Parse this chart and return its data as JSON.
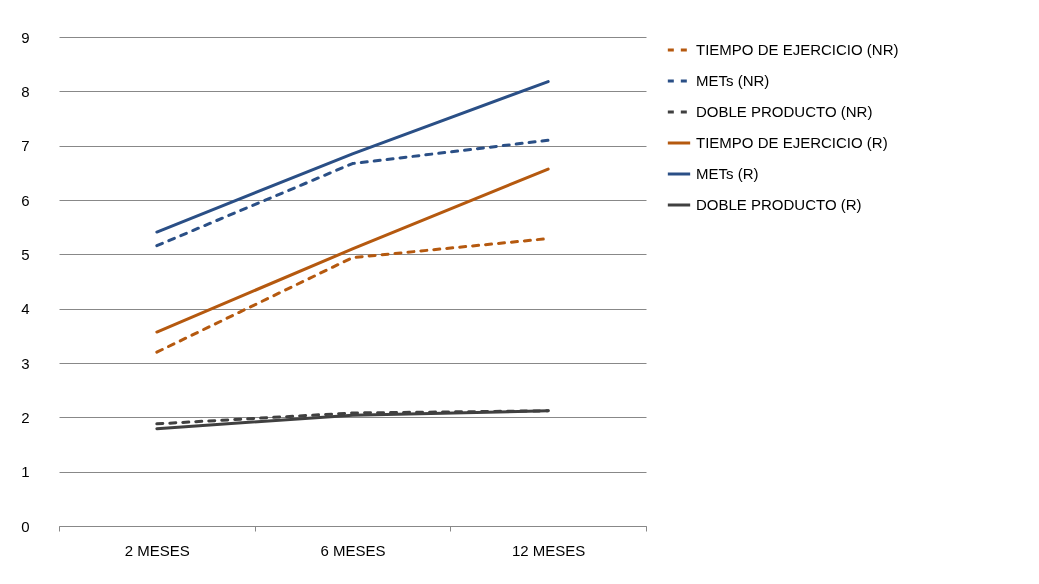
{
  "chart_data": {
    "type": "line",
    "categories": [
      "2 MESES",
      "6 MESES",
      "12 MESES"
    ],
    "series": [
      {
        "name": "TIEMPO DE EJERCICIO  (NR)",
        "color": "#b5590f",
        "line_style": "dashed",
        "values": [
          3.2,
          4.94,
          5.29
        ]
      },
      {
        "name": "METs (NR)",
        "color": "#2a4f86",
        "line_style": "dashed",
        "values": [
          5.16,
          6.67,
          7.1
        ]
      },
      {
        "name": "DOBLE PRODUCTO (NR)",
        "color": "#404040",
        "line_style": "dashed",
        "values": [
          1.88,
          2.08,
          2.12
        ]
      },
      {
        "name": "TIEMPO DE EJERCICIO  (R)",
        "color": "#b5590f",
        "line_style": "solid",
        "values": [
          3.57,
          5.1,
          6.57
        ]
      },
      {
        "name": "METs (R)",
        "color": "#2a4f86",
        "line_style": "solid",
        "values": [
          5.41,
          6.85,
          8.18
        ]
      },
      {
        "name": "DOBLE PRODUCTO (R)",
        "color": "#404040",
        "line_style": "solid",
        "values": [
          1.79,
          2.04,
          2.12
        ]
      }
    ],
    "ylim": [
      0,
      9
    ],
    "yticks": [
      0,
      1,
      2,
      3,
      4,
      5,
      6,
      7,
      8,
      9
    ],
    "grid": "y",
    "legend": "right",
    "marker": "none"
  }
}
